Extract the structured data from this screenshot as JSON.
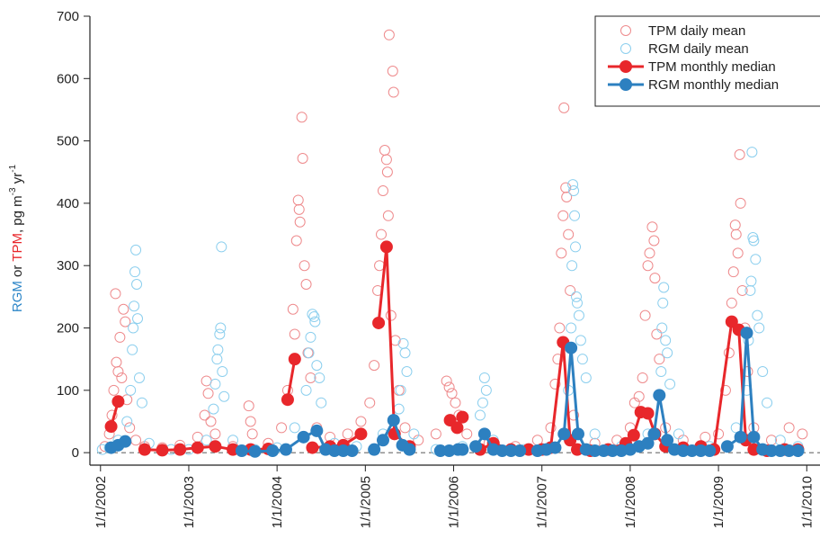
{
  "chart_data": {
    "type": "scatter",
    "ylabel": [
      {
        "text": "RGM",
        "color": "#2d86c8",
        "sup": false
      },
      {
        "text": " or ",
        "color": "#222222",
        "sup": false
      },
      {
        "text": "TPM",
        "color": "#e8272b",
        "sup": false
      },
      {
        "text": ", pg m",
        "color": "#222222",
        "sup": false
      },
      {
        "text": "-3",
        "color": "#222222",
        "sup": true
      },
      {
        "text": " yr",
        "color": "#222222",
        "sup": false
      },
      {
        "text": "-1",
        "color": "#222222",
        "sup": true
      }
    ],
    "xlim": [
      2001.88,
      2010.15
    ],
    "ylim": [
      -20,
      700
    ],
    "xticks": [
      {
        "value": 2002,
        "label": "1/1/2002"
      },
      {
        "value": 2003,
        "label": "1/1/2003"
      },
      {
        "value": 2004,
        "label": "1/1/2004"
      },
      {
        "value": 2005,
        "label": "1/1/2005"
      },
      {
        "value": 2006,
        "label": "1/1/2006"
      },
      {
        "value": 2007,
        "label": "1/1/2007"
      },
      {
        "value": 2008,
        "label": "1/1/2008"
      },
      {
        "value": 2009,
        "label": "1/1/2009"
      },
      {
        "value": 2010,
        "label": "1/1/2010"
      }
    ],
    "yticks": [
      0,
      100,
      200,
      300,
      400,
      500,
      600,
      700
    ],
    "zero_line": true,
    "legend": "top-right",
    "series": [
      {
        "name": "TPM daily mean",
        "color": "#ee8a8c",
        "marker": "open",
        "line": false,
        "x": [
          2002.05,
          2002.1,
          2002.13,
          2002.15,
          2002.17,
          2002.18,
          2002.2,
          2002.22,
          2002.24,
          2002.26,
          2002.28,
          2002.3,
          2002.33,
          2002.4,
          2002.5,
          2002.7,
          2002.9,
          2003.1,
          2003.18,
          2003.2,
          2003.22,
          2003.25,
          2003.3,
          2003.5,
          2003.68,
          2003.7,
          2003.72,
          2003.9,
          2004.05,
          2004.12,
          2004.18,
          2004.2,
          2004.22,
          2004.24,
          2004.25,
          2004.26,
          2004.28,
          2004.29,
          2004.31,
          2004.33,
          2004.35,
          2004.38,
          2004.45,
          2004.6,
          2004.8,
          2004.95,
          2005.05,
          2005.1,
          2005.14,
          2005.16,
          2005.18,
          2005.2,
          2005.22,
          2005.24,
          2005.25,
          2005.26,
          2005.27,
          2005.29,
          2005.31,
          2005.32,
          2005.34,
          2005.38,
          2005.45,
          2005.6,
          2005.8,
          2005.92,
          2005.95,
          2005.98,
          2006.02,
          2006.06,
          2006.15,
          2006.4,
          2006.7,
          2006.95,
          2007.1,
          2007.15,
          2007.18,
          2007.2,
          2007.22,
          2007.24,
          2007.25,
          2007.27,
          2007.28,
          2007.3,
          2007.32,
          2007.36,
          2007.6,
          2007.85,
          2008.0,
          2008.05,
          2008.1,
          2008.14,
          2008.17,
          2008.2,
          2008.22,
          2008.25,
          2008.27,
          2008.28,
          2008.3,
          2008.33,
          2008.4,
          2008.6,
          2008.85,
          2009.0,
          2009.08,
          2009.12,
          2009.15,
          2009.17,
          2009.19,
          2009.2,
          2009.22,
          2009.24,
          2009.25,
          2009.27,
          2009.3,
          2009.33,
          2009.4,
          2009.6,
          2009.8,
          2009.95
        ],
        "values": [
          10,
          30,
          60,
          100,
          255,
          145,
          130,
          185,
          120,
          230,
          210,
          85,
          40,
          20,
          10,
          8,
          12,
          25,
          60,
          115,
          95,
          50,
          30,
          10,
          75,
          50,
          30,
          15,
          40,
          100,
          230,
          190,
          340,
          405,
          390,
          370,
          538,
          472,
          300,
          270,
          160,
          120,
          40,
          25,
          30,
          50,
          80,
          140,
          260,
          300,
          350,
          420,
          485,
          470,
          450,
          380,
          670,
          220,
          612,
          578,
          180,
          100,
          40,
          20,
          30,
          115,
          105,
          95,
          80,
          60,
          30,
          15,
          10,
          20,
          40,
          110,
          150,
          200,
          320,
          380,
          553,
          425,
          410,
          350,
          260,
          60,
          15,
          20,
          40,
          80,
          90,
          120,
          220,
          300,
          320,
          362,
          340,
          280,
          190,
          150,
          40,
          20,
          25,
          30,
          100,
          160,
          240,
          290,
          365,
          350,
          320,
          478,
          400,
          260,
          200,
          130,
          40,
          20,
          40,
          30
        ]
      },
      {
        "name": "RGM daily mean",
        "color": "#8ccfee",
        "marker": "open",
        "line": false,
        "x": [
          2002.02,
          2002.1,
          2002.2,
          2002.3,
          2002.34,
          2002.36,
          2002.37,
          2002.38,
          2002.39,
          2002.4,
          2002.41,
          2002.42,
          2002.44,
          2002.47,
          2002.55,
          2002.8,
          2003.0,
          2003.2,
          2003.28,
          2003.3,
          2003.32,
          2003.33,
          2003.35,
          2003.36,
          2003.37,
          2003.38,
          2003.4,
          2003.5,
          2003.75,
          2004.0,
          2004.2,
          2004.33,
          2004.36,
          2004.38,
          2004.4,
          2004.42,
          2004.43,
          2004.45,
          2004.48,
          2004.5,
          2004.65,
          2004.9,
          2005.2,
          2005.38,
          2005.4,
          2005.43,
          2005.45,
          2005.47,
          2005.55,
          2005.8,
          2006.1,
          2006.3,
          2006.33,
          2006.35,
          2006.37,
          2006.45,
          2006.8,
          2007.1,
          2007.3,
          2007.33,
          2007.34,
          2007.35,
          2007.36,
          2007.37,
          2007.38,
          2007.39,
          2007.4,
          2007.42,
          2007.44,
          2007.46,
          2007.5,
          2007.6,
          2007.9,
          2008.2,
          2008.33,
          2008.35,
          2008.36,
          2008.37,
          2008.38,
          2008.4,
          2008.42,
          2008.45,
          2008.55,
          2008.9,
          2009.2,
          2009.32,
          2009.34,
          2009.36,
          2009.37,
          2009.38,
          2009.39,
          2009.4,
          2009.42,
          2009.44,
          2009.46,
          2009.5,
          2009.55,
          2009.7,
          2009.9
        ],
        "values": [
          5,
          8,
          20,
          50,
          100,
          165,
          200,
          235,
          290,
          325,
          270,
          215,
          120,
          80,
          15,
          5,
          5,
          20,
          70,
          110,
          150,
          165,
          190,
          200,
          330,
          130,
          90,
          20,
          5,
          8,
          40,
          100,
          160,
          185,
          222,
          218,
          210,
          140,
          120,
          80,
          15,
          10,
          30,
          70,
          100,
          175,
          160,
          130,
          30,
          5,
          10,
          60,
          80,
          120,
          100,
          20,
          5,
          10,
          100,
          200,
          300,
          430,
          420,
          380,
          330,
          250,
          240,
          220,
          180,
          150,
          120,
          30,
          10,
          30,
          90,
          130,
          200,
          240,
          265,
          180,
          160,
          110,
          30,
          10,
          40,
          100,
          180,
          260,
          275,
          482,
          345,
          340,
          310,
          220,
          200,
          130,
          80,
          20,
          10
        ]
      },
      {
        "name": "TPM monthly median",
        "color": "#e8272b",
        "marker": "filled",
        "line": true,
        "x": [
          2002.12,
          2002.2,
          null,
          2002.5,
          2002.7,
          2002.9,
          2003.1,
          2003.3,
          2003.5,
          2003.7,
          2003.9,
          null,
          2004.12,
          2004.2,
          null,
          2004.4,
          2004.6,
          2004.75,
          2004.95,
          null,
          2005.15,
          2005.24,
          2005.33,
          2005.5,
          null,
          2005.96,
          2006.04,
          2006.1,
          null,
          2006.3,
          2006.45,
          2006.65,
          2006.85,
          2007.0,
          2007.1,
          2007.24,
          2007.32,
          2007.4,
          2007.55,
          2007.75,
          2007.95,
          2008.04,
          2008.12,
          2008.2,
          2008.28,
          2008.4,
          2008.6,
          2008.8,
          2008.95,
          2009.15,
          2009.23,
          2009.31,
          2009.4,
          2009.55,
          2009.75,
          2009.9
        ],
        "values": [
          42,
          82,
          null,
          5,
          4,
          5,
          8,
          10,
          5,
          5,
          6,
          null,
          85,
          150,
          null,
          8,
          10,
          12,
          30,
          null,
          208,
          330,
          30,
          10,
          null,
          52,
          40,
          57,
          null,
          5,
          15,
          5,
          5,
          5,
          8,
          177,
          20,
          5,
          3,
          5,
          15,
          28,
          65,
          63,
          30,
          10,
          8,
          10,
          5,
          210,
          197,
          20,
          5,
          3,
          5,
          5
        ]
      },
      {
        "name": "RGM monthly median",
        "color": "#2d80c0",
        "marker": "filled",
        "line": true,
        "x": [
          2002.12,
          2002.2,
          2002.28,
          null,
          2003.6,
          2003.75,
          2003.95,
          2004.1,
          2004.3,
          2004.45,
          2004.55,
          2004.65,
          2004.75,
          2004.85,
          null,
          2005.1,
          2005.2,
          2005.32,
          2005.42,
          2005.5,
          null,
          2005.85,
          2005.95,
          2006.05,
          2006.1,
          null,
          2006.25,
          2006.35,
          2006.45,
          2006.55,
          2006.65,
          2006.75,
          null,
          2006.95,
          2007.05,
          2007.15,
          2007.25,
          2007.33,
          2007.41,
          2007.5,
          2007.6,
          2007.7,
          2007.8,
          2007.9,
          2008.0,
          2008.1,
          2008.2,
          2008.27,
          2008.33,
          2008.42,
          2008.5,
          2008.6,
          2008.7,
          2008.8,
          2008.9,
          null,
          2009.1,
          2009.25,
          2009.32,
          2009.4,
          2009.5,
          2009.6,
          2009.7,
          2009.8,
          2009.9
        ],
        "values": [
          8,
          12,
          18,
          null,
          3,
          2,
          3,
          5,
          25,
          35,
          5,
          3,
          3,
          3,
          null,
          5,
          20,
          52,
          12,
          5,
          null,
          3,
          3,
          5,
          5,
          null,
          10,
          30,
          5,
          3,
          3,
          3,
          null,
          3,
          5,
          8,
          30,
          168,
          30,
          5,
          3,
          3,
          3,
          3,
          5,
          10,
          15,
          30,
          92,
          20,
          5,
          3,
          3,
          3,
          3,
          null,
          10,
          25,
          192,
          25,
          5,
          3,
          3,
          3,
          3
        ]
      }
    ]
  }
}
